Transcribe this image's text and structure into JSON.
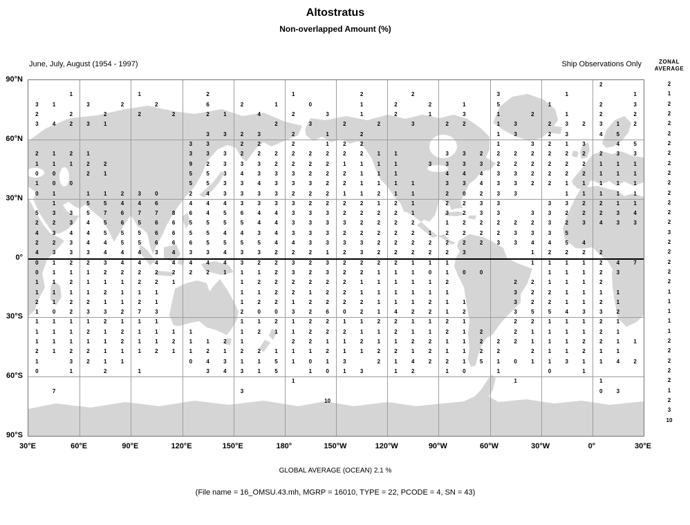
{
  "title": "Altostratus",
  "subtitle": "Non-overlapped Amount (%)",
  "season_label": "June, July, August (1954 - 1997)",
  "source_label": "Ship Observations Only",
  "zonal_header_line1": "ZONAL",
  "zonal_header_line2": "AVERAGE",
  "axes": {
    "lat": [
      "90°N",
      "60°N",
      "30°N",
      "0°",
      "30°S",
      "60°S",
      "90°S"
    ],
    "lon": [
      "30°E",
      "60°E",
      "90°E",
      "120°E",
      "150°E",
      "180°",
      "150°W",
      "120°W",
      "90°W",
      "60°W",
      "30°W",
      "0°",
      "30°E"
    ]
  },
  "footer": {
    "global_average": "GLOBAL AVERAGE (OCEAN)  2.1 %",
    "file_info": "(File name = 16_OMSU.43.mh, MGRP = 16010, TYPE = 22, PCODE = 4, SN = 43)"
  },
  "zonal_averages": [
    "2",
    "1",
    "2",
    "2",
    "2",
    "2",
    "2",
    "2",
    "2",
    "2",
    "2",
    "2",
    "2",
    "2",
    "2",
    "3",
    "2",
    "2",
    "2",
    "2",
    "2",
    "1",
    "1",
    "1",
    "1",
    "1",
    "2",
    "2",
    "2",
    "2",
    "2",
    "1",
    "2",
    "3",
    "10",
    ""
  ],
  "chart_data": {
    "type": "heatmap",
    "title": "Altostratus — Non-overlapped Amount (%)",
    "season": "June, July, August (1954 - 1997)",
    "source": "Ship Observations Only",
    "units": "%",
    "lon_start_deg_east": 30,
    "lon_step_deg": 10,
    "lat_start_deg_north": 87.5,
    "lat_step_deg": -5,
    "legend": "each character is one grid-box mean amount; X = 10; space = no ship data (land)",
    "rows": [
      "                                 2  ",
      "  1   1   2    1   2  2    3   1   1",
      "31 3 2 2  6 2 1 0  1 2 2 1 5  1  2 3",
      "2 2 2 2 2 21 4 2 3 1 2 1 3 1 2 1 2 2",
      "34231         2 3 2 2 3 22 13 232312",
      "          3323 2 1 2       13 23 45 ",
      "         33 22 2 122       1 3213 45",
      "2121     3332222222211  332222222233",
      "11122    9233322221111 3333222222111",
      "00 21    5534333222111  444332222111",
      "100      55334333221111 334332211111",
      "01 11230 24333322211211 20233  11111",
      " 1 55446 44433332222121 2233  332211",
      "53357677864564433322221 3233 3322234",
      "22345656655554433332222 122222323433",
      "43445556655443433322222122223335    ",
      "223445566655554433332222222334454   ",
      "43334443433433222123222223   12222  ",
      "0122344444443223232222111    1111247",
      "011122222221112323221110100   11123 ",
      "112111221   1222222111112   221112  ",
      "11112111    1122122111111   3221111 ",
      "21221121    12212222111211  3221121 ",
      "10233273    20032602142212  3554332 ",
      "11112111    11212211221121  2211121 ",
      "1112121111  121122211211212 2111121 ",
      "1111121121121  221121122112221112211",
      "2122111211212211121122121122 211211 ",
      "1 3211   0431151013 2142215101131142",
      "0 1 2 1   34315 1013 12 10 1  0 1   ",
      "               1            1    1  ",
      " 7          3                    03 ",
      "                 X                  ",
      "                                    ",
      "                                    ",
      "                                    "
    ],
    "zonal_averages": [
      "2",
      "1",
      "2",
      "2",
      "2",
      "2",
      "2",
      "2",
      "2",
      "2",
      "2",
      "2",
      "2",
      "2",
      "2",
      "3",
      "2",
      "2",
      "2",
      "2",
      "2",
      "1",
      "1",
      "1",
      "1",
      "1",
      "2",
      "2",
      "2",
      "2",
      "2",
      "1",
      "2",
      "3",
      "10",
      ""
    ],
    "global_average_ocean": "2.1 %"
  }
}
